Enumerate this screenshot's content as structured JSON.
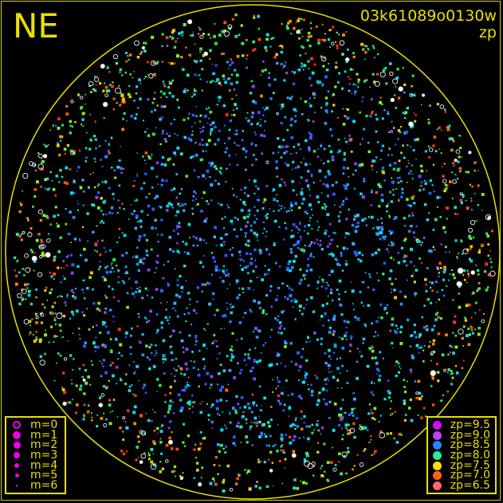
{
  "header": {
    "direction": "NE",
    "frame_id": "03k61089o0130w",
    "mode": "zp"
  },
  "magnitude_legend": [
    {
      "label": "m=0",
      "symbol": "open-circle"
    },
    {
      "label": "m=1",
      "symbol": "filled-circle"
    },
    {
      "label": "m=2",
      "symbol": "filled-circle"
    },
    {
      "label": "m=3",
      "symbol": "filled-circle"
    },
    {
      "label": "m=4",
      "symbol": "filled-circle"
    },
    {
      "label": "m=5",
      "symbol": "filled-circle"
    },
    {
      "label": "m=6",
      "symbol": "filled-circle"
    }
  ],
  "magnitude_legend_color": "#ee00ee",
  "zp_legend": [
    {
      "label": "zp=9.5",
      "color": "#cc11ee"
    },
    {
      "label": "zp=9.0",
      "color": "#bb44ee"
    },
    {
      "label": "zp=8.5",
      "color": "#2288ff"
    },
    {
      "label": "zp=8.0",
      "color": "#22ee99"
    },
    {
      "label": "zp=7.5",
      "color": "#ffdd00"
    },
    {
      "label": "zp=7.0",
      "color": "#ff6611"
    },
    {
      "label": "zp=6.5",
      "color": "#ff6666"
    }
  ],
  "colors": {
    "accent": "#e8e000",
    "background": "#000000",
    "saturated": "#ffffff"
  }
}
